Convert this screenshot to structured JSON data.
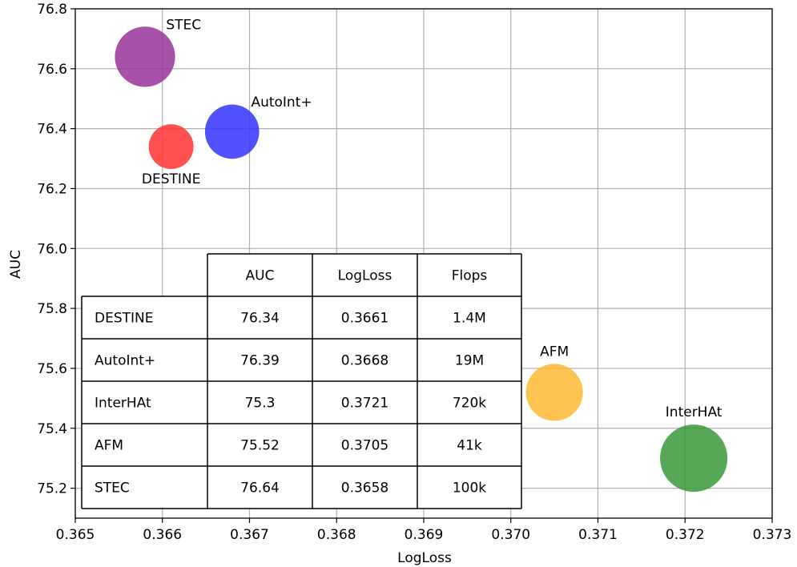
{
  "chart_data": {
    "type": "scatter",
    "title": "",
    "xlabel": "LogLoss",
    "ylabel": "AUC",
    "xlim": [
      0.365,
      0.373
    ],
    "ylim": [
      75.1,
      76.8
    ],
    "xticks": [
      "0.365",
      "0.366",
      "0.367",
      "0.368",
      "0.369",
      "0.370",
      "0.371",
      "0.372",
      "0.373"
    ],
    "yticks": [
      "75.2",
      "75.4",
      "75.6",
      "75.8",
      "76.0",
      "76.2",
      "76.4",
      "76.6",
      "76.8"
    ],
    "grid": true,
    "points": [
      {
        "label": "DESTINE",
        "x": 0.3661,
        "y": 76.34,
        "size": 1.4,
        "color": "#ff3333",
        "label_pos": "below"
      },
      {
        "label": "AutoInt+",
        "x": 0.3668,
        "y": 76.39,
        "size": 19,
        "color": "#3333ff",
        "label_pos": "upper-right"
      },
      {
        "label": "InterHAt",
        "x": 0.3721,
        "y": 75.3,
        "size": 720,
        "color": "#3a9a3a",
        "label_pos": "above"
      },
      {
        "label": "AFM",
        "x": 0.3705,
        "y": 75.52,
        "size": 41,
        "color": "#ffb833",
        "label_pos": "above"
      },
      {
        "label": "STEC",
        "x": 0.3658,
        "y": 76.64,
        "size": 100,
        "color": "#993399",
        "label_pos": "upper-right"
      }
    ],
    "table": {
      "placement": "lower-left",
      "columns": [
        "AUC",
        "LogLoss",
        "Flops"
      ],
      "rows": [
        {
          "name": "DESTINE",
          "cells": [
            "76.34",
            "0.3661",
            "1.4M"
          ]
        },
        {
          "name": "AutoInt+",
          "cells": [
            "76.39",
            "0.3668",
            "19M"
          ]
        },
        {
          "name": "InterHAt",
          "cells": [
            "75.3",
            "0.3721",
            "720k"
          ]
        },
        {
          "name": "AFM",
          "cells": [
            "75.52",
            "0.3705",
            "41k"
          ]
        },
        {
          "name": "STEC",
          "cells": [
            "76.64",
            "0.3658",
            "100k"
          ]
        }
      ]
    }
  }
}
